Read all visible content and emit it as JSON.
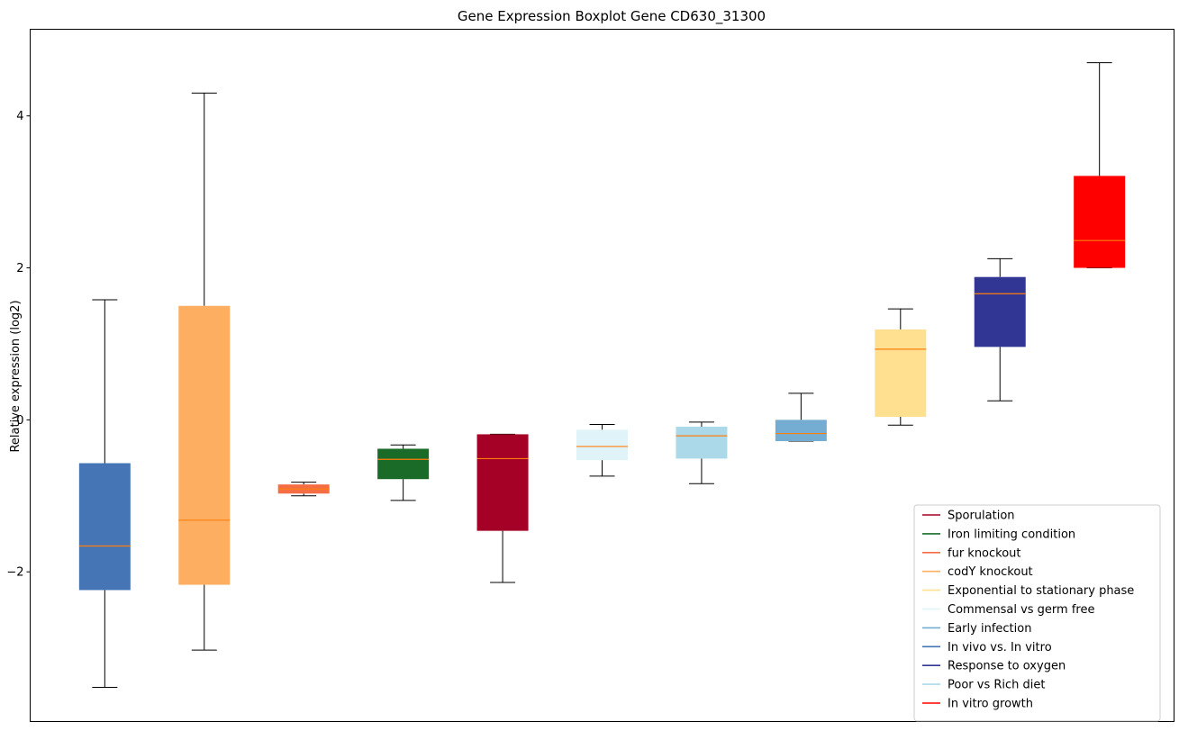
{
  "chart_data": {
    "type": "boxplot",
    "title": "Gene Expression Boxplot Gene CD630_31300",
    "xlabel": "",
    "ylabel": "Relative expression (log2)",
    "ylim": [
      -3.97,
      5.14
    ],
    "yticks": [
      -2,
      0,
      2,
      4
    ],
    "ytick_labels": [
      "−2",
      "0",
      "2",
      "4"
    ],
    "median_color": "#ff7f0e",
    "legend_position": "bottom-right",
    "boxes": [
      {
        "name": "In vivo vs. In vitro",
        "color": "#4575b4",
        "whisker_low": -3.52,
        "q1": -2.24,
        "median": -1.66,
        "q3": -0.57,
        "whisker_high": 1.58
      },
      {
        "name": "codY knockout",
        "color": "#fdae61",
        "whisker_low": -3.03,
        "q1": -2.17,
        "median": -1.32,
        "q3": 1.5,
        "whisker_high": 4.3
      },
      {
        "name": "fur knockout",
        "color": "#f46d43",
        "whisker_low": -1.0,
        "q1": -0.97,
        "median": -0.91,
        "q3": -0.85,
        "whisker_high": -0.82
      },
      {
        "name": "Iron limiting condition",
        "color": "#1a6b28",
        "whisker_low": -1.06,
        "q1": -0.78,
        "median": -0.52,
        "q3": -0.38,
        "whisker_high": -0.33
      },
      {
        "name": "Sporulation",
        "color": "#a50026",
        "whisker_low": -2.14,
        "q1": -1.46,
        "median": -0.51,
        "q3": -0.19,
        "whisker_high": -0.19
      },
      {
        "name": "Commensal vs germ free",
        "color": "#e0f3f8",
        "whisker_low": -0.74,
        "q1": -0.53,
        "median": -0.35,
        "q3": -0.13,
        "whisker_high": -0.06
      },
      {
        "name": "Poor vs Rich diet",
        "color": "#abd9e9",
        "whisker_low": -0.84,
        "q1": -0.51,
        "median": -0.21,
        "q3": -0.09,
        "whisker_high": -0.03
      },
      {
        "name": "Early infection",
        "color": "#74add1",
        "whisker_low": -0.28,
        "q1": -0.28,
        "median": -0.18,
        "q3": 0.0,
        "whisker_high": 0.35
      },
      {
        "name": "Exponential to stationary phase",
        "color": "#fee090",
        "whisker_low": -0.07,
        "q1": 0.04,
        "median": 0.93,
        "q3": 1.19,
        "whisker_high": 1.46
      },
      {
        "name": "Response to oxygen",
        "color": "#313695",
        "whisker_low": 0.25,
        "q1": 0.96,
        "median": 1.66,
        "q3": 1.88,
        "whisker_high": 2.12
      },
      {
        "name": "In vitro growth",
        "color": "#ff0000",
        "whisker_low": 2.0,
        "q1": 2.0,
        "median": 2.36,
        "q3": 3.21,
        "whisker_high": 4.7
      }
    ],
    "legend": [
      {
        "label": "Sporulation",
        "color": "#a50026"
      },
      {
        "label": "Iron limiting condition",
        "color": "#1a6b28"
      },
      {
        "label": "fur knockout",
        "color": "#f46d43"
      },
      {
        "label": "codY knockout",
        "color": "#fdae61"
      },
      {
        "label": "Exponential to stationary phase",
        "color": "#fee090"
      },
      {
        "label": "Commensal vs germ free",
        "color": "#e0f3f8"
      },
      {
        "label": "Early infection",
        "color": "#74add1"
      },
      {
        "label": "In vivo vs. In vitro",
        "color": "#4575b4"
      },
      {
        "label": "Response to oxygen",
        "color": "#313695"
      },
      {
        "label": "Poor vs Rich diet",
        "color": "#abd9e9"
      },
      {
        "label": "In vitro growth",
        "color": "#ff0000"
      }
    ]
  }
}
